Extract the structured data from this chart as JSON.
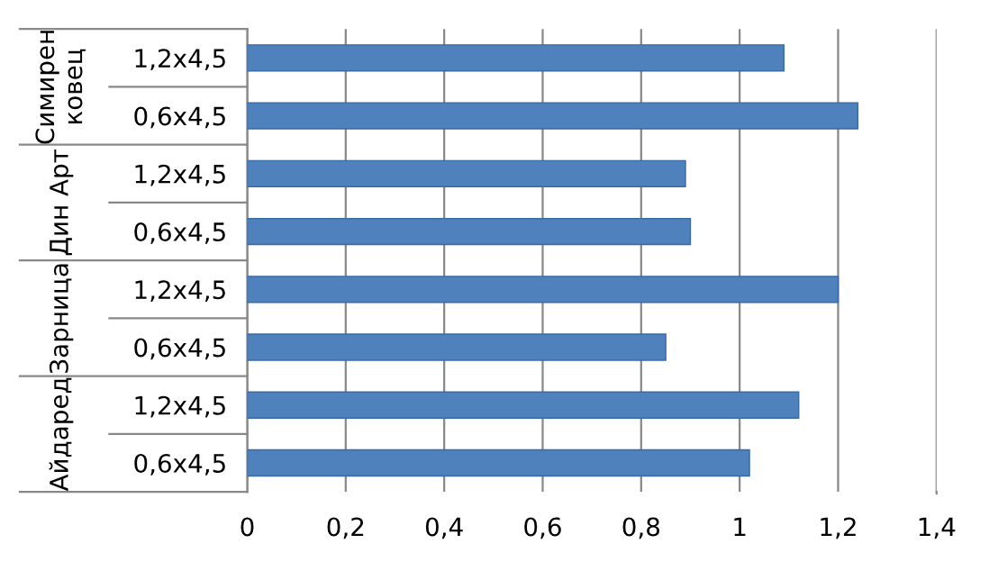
{
  "chart_data": {
    "type": "bar",
    "orientation": "horizontal",
    "categories": [
      "1,2x4,5",
      "0,6x4,5",
      "1,2x4,5",
      "0,6x4,5",
      "1,2x4,5",
      "0,6x4,5",
      "1,2x4,5",
      "0,6x4,5"
    ],
    "values": [
      1.09,
      1.24,
      0.89,
      0.9,
      1.2,
      0.85,
      1.12,
      1.02
    ],
    "color": "#4f81bd",
    "annotations": [
      "Симирен\nковец",
      "Дин Арт",
      "Зарница",
      "Айдаред"
    ],
    "xlim": [
      0,
      1.4
    ],
    "xticks": [
      0,
      {
        "value": 0.2,
        "label": "0,2"
      },
      {
        "value": 0.4,
        "label": "0,4"
      },
      {
        "value": 0.6,
        "label": "0,6"
      },
      {
        "value": 0.8,
        "label": "0,8"
      },
      1,
      {
        "value": 1.2,
        "label": "1,2"
      },
      {
        "value": 1.4,
        "label": "1,4"
      }
    ],
    "grid": "x"
  }
}
